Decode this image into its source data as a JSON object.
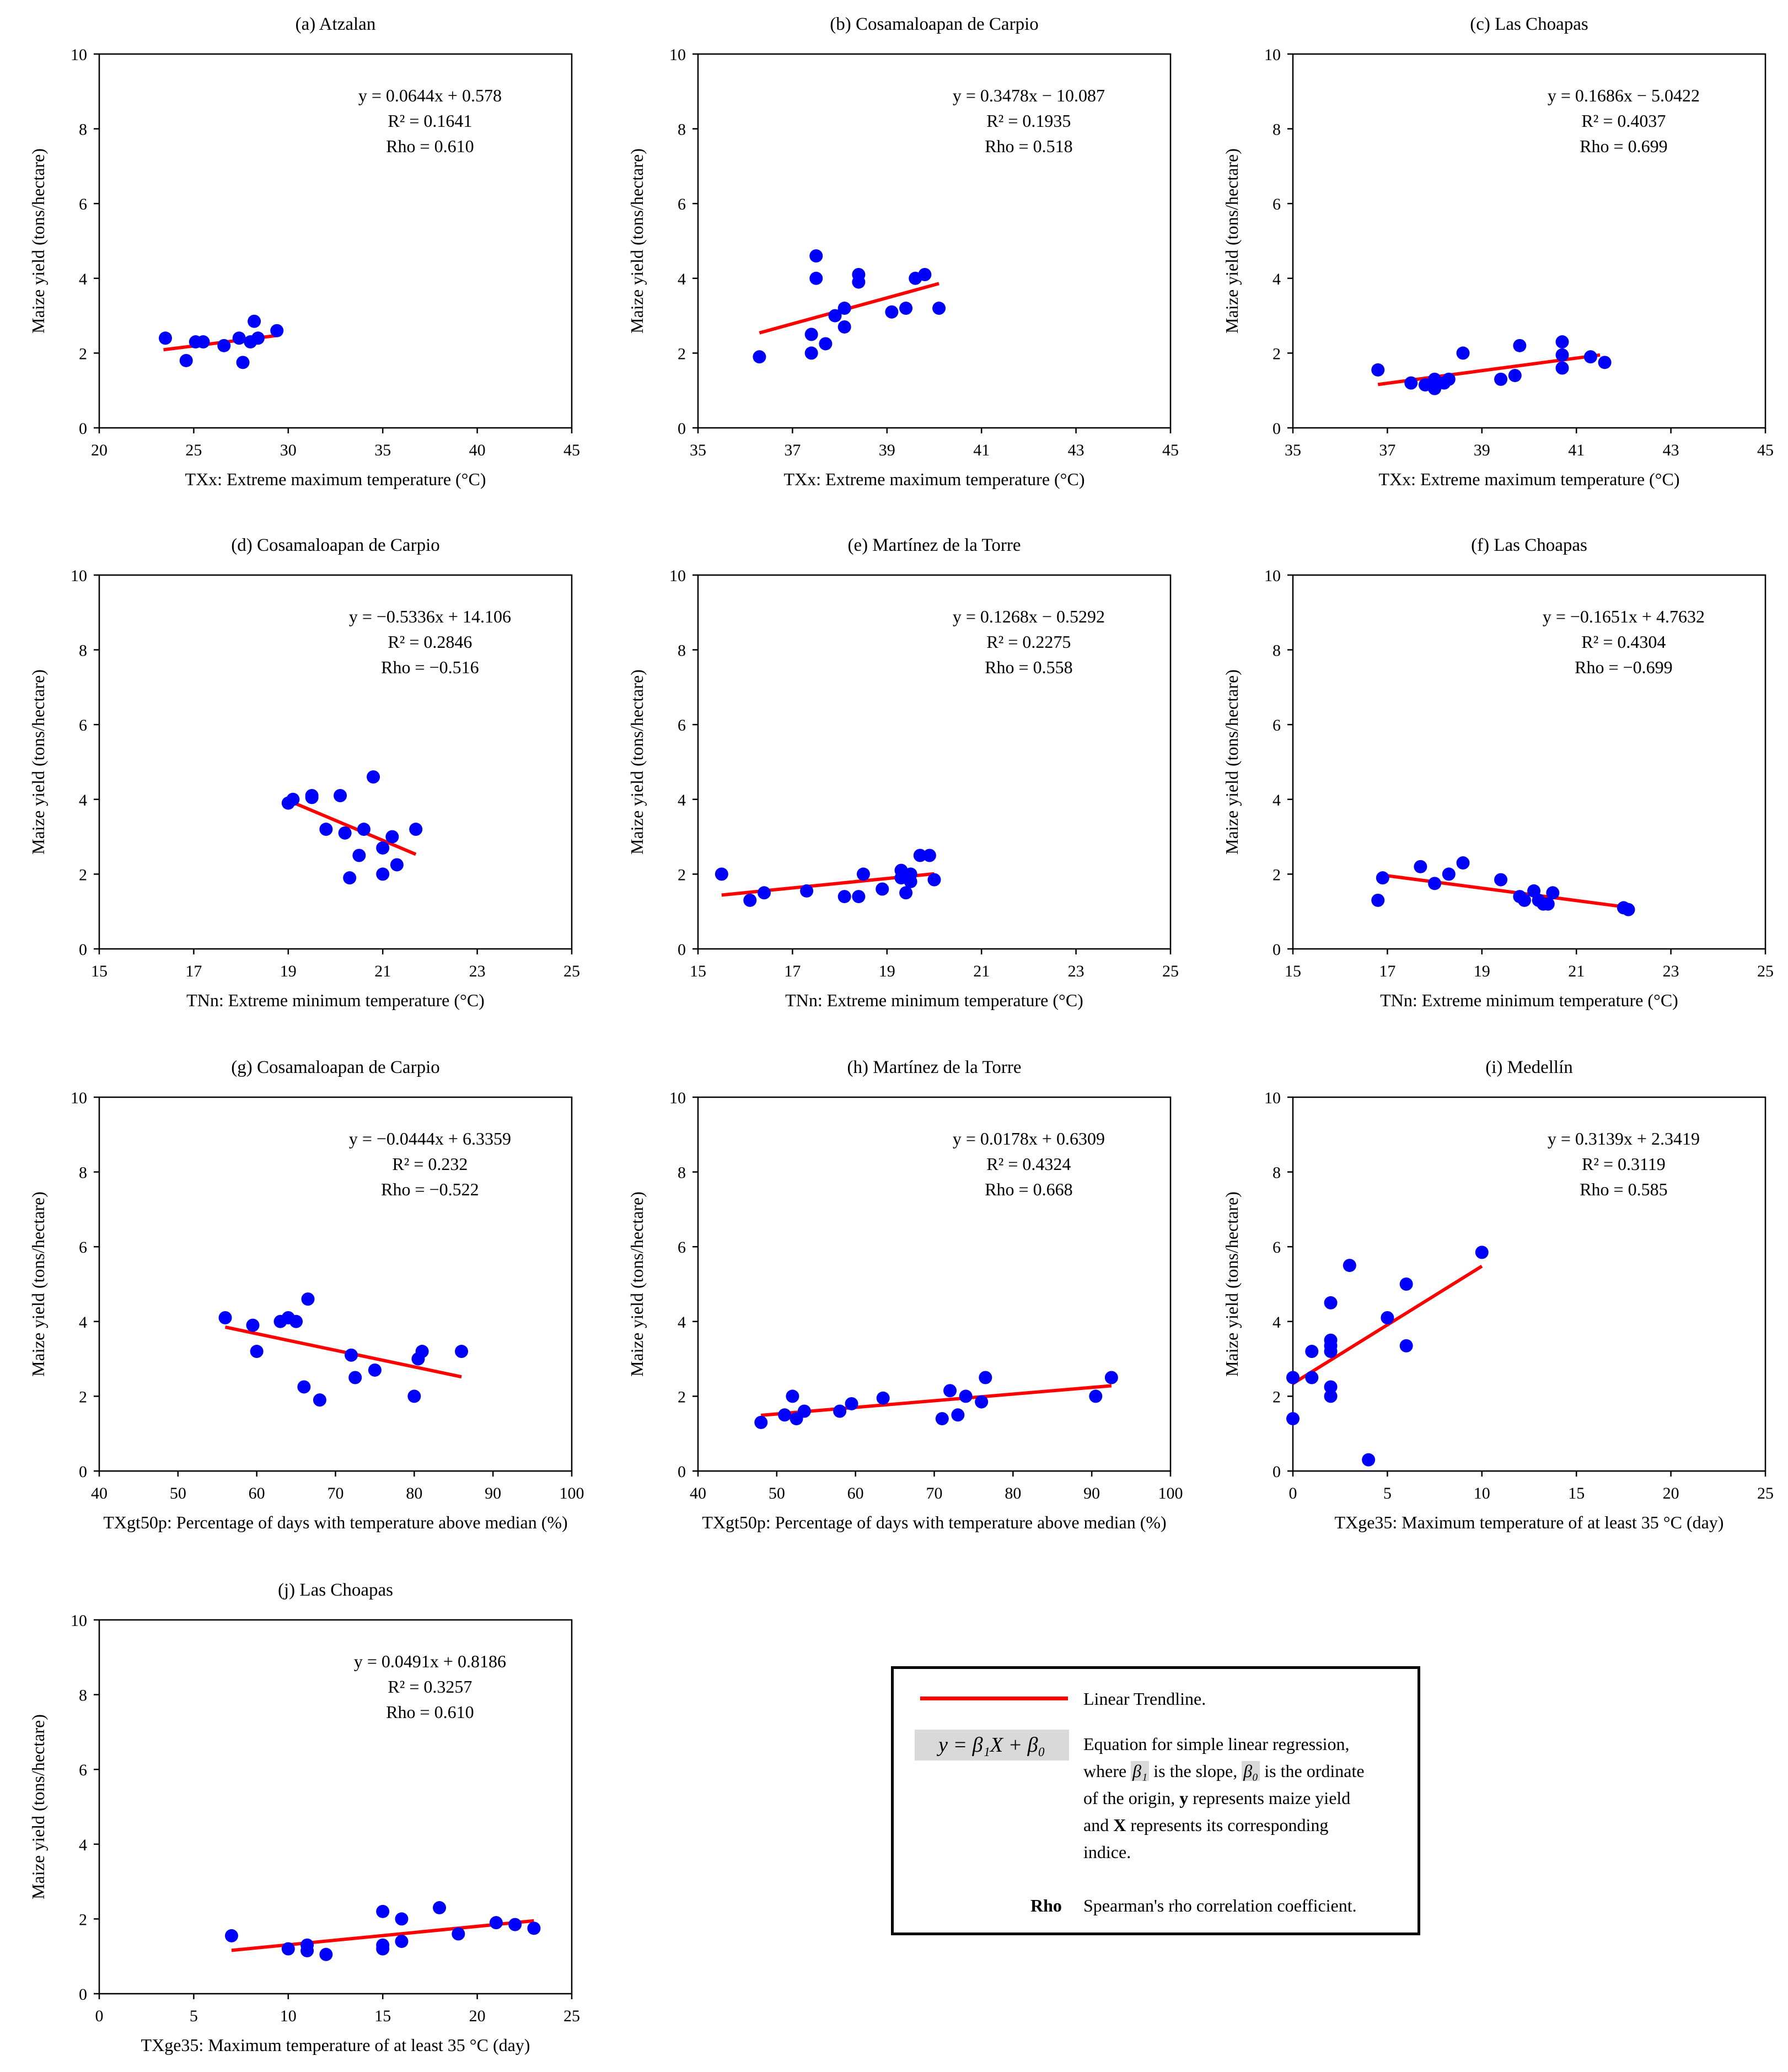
{
  "chart_data": [
    {
      "type": "scatter",
      "title": "(a) Atzalan",
      "xlabel": "TXx: Extreme maximum  temperature (°C)",
      "ylabel": "Maize yield  (tons/hectare)",
      "xlim": [
        20,
        45
      ],
      "ylim": [
        0,
        10
      ],
      "xticks": [
        "20",
        "25",
        "30",
        "35",
        "40",
        "45"
      ],
      "yticks": [
        "0",
        "2",
        "4",
        "6",
        "8",
        "10"
      ],
      "equation": "y = 0.0644x + 0.578",
      "r2": "R² = 0.1641",
      "rho": "Rho = 0.610",
      "trend": [
        [
          23.4,
          2.09
        ],
        [
          29.4,
          2.47
        ]
      ],
      "points": [
        [
          23.5,
          2.4
        ],
        [
          24.6,
          1.8
        ],
        [
          25.1,
          2.3
        ],
        [
          25.5,
          2.3
        ],
        [
          26.6,
          2.2
        ],
        [
          27.4,
          2.4
        ],
        [
          27.6,
          1.75
        ],
        [
          28.0,
          2.3
        ],
        [
          28.2,
          2.85
        ],
        [
          28.4,
          2.4
        ],
        [
          29.4,
          2.6
        ]
      ]
    },
    {
      "type": "scatter",
      "title": "(b) Cosamaloapan de Carpio",
      "xlabel": "TXx: Extreme maximum  temperature (°C)",
      "ylabel": "Maize yield  (tons/hectare)",
      "xlim": [
        35,
        45
      ],
      "ylim": [
        0,
        10
      ],
      "xticks": [
        "35",
        "37",
        "39",
        "41",
        "43",
        "45"
      ],
      "yticks": [
        "0",
        "2",
        "4",
        "6",
        "8",
        "10"
      ],
      "equation": "y = 0.3478x − 10.087",
      "r2": "R² = 0.1935",
      "rho": "Rho = 0.518",
      "trend": [
        [
          36.3,
          2.54
        ],
        [
          40.1,
          3.86
        ]
      ],
      "points": [
        [
          36.3,
          1.9
        ],
        [
          37.4,
          2.0
        ],
        [
          37.4,
          2.5
        ],
        [
          37.5,
          4.0
        ],
        [
          37.5,
          4.6
        ],
        [
          37.7,
          2.25
        ],
        [
          37.9,
          3.0
        ],
        [
          38.1,
          3.2
        ],
        [
          38.1,
          2.7
        ],
        [
          38.4,
          4.1
        ],
        [
          38.4,
          3.9
        ],
        [
          39.1,
          3.1
        ],
        [
          39.4,
          3.2
        ],
        [
          39.6,
          4.0
        ],
        [
          39.8,
          4.1
        ],
        [
          40.1,
          3.2
        ]
      ]
    },
    {
      "type": "scatter",
      "title": "(c) Las Choapas",
      "xlabel": "TXx: Extreme maximum  temperature (°C)",
      "ylabel": "Maize yield  (tons/hectare)",
      "xlim": [
        35,
        45
      ],
      "ylim": [
        0,
        10
      ],
      "xticks": [
        "35",
        "37",
        "39",
        "41",
        "43",
        "45"
      ],
      "yticks": [
        "0",
        "2",
        "4",
        "6",
        "8",
        "10"
      ],
      "equation": "y = 0.1686x − 5.0422",
      "r2": "R² = 0.4037",
      "rho": "Rho = 0.699",
      "trend": [
        [
          36.8,
          1.16
        ],
        [
          41.5,
          1.95
        ]
      ],
      "points": [
        [
          36.8,
          1.55
        ],
        [
          37.5,
          1.2
        ],
        [
          37.8,
          1.15
        ],
        [
          38.0,
          1.05
        ],
        [
          38.0,
          1.3
        ],
        [
          38.2,
          1.2
        ],
        [
          38.3,
          1.3
        ],
        [
          38.6,
          2.0
        ],
        [
          39.4,
          1.3
        ],
        [
          39.7,
          1.4
        ],
        [
          39.8,
          2.2
        ],
        [
          40.7,
          2.3
        ],
        [
          40.7,
          1.95
        ],
        [
          40.7,
          1.6
        ],
        [
          41.3,
          1.9
        ],
        [
          41.6,
          1.75
        ]
      ]
    },
    {
      "type": "scatter",
      "title": "(d) Cosamaloapan de Carpio",
      "xlabel": "TNn: Extreme minimum  temperature (°C)",
      "ylabel": "Maize yield  (tons/hectare)",
      "xlim": [
        15,
        25
      ],
      "ylim": [
        0,
        10
      ],
      "xticks": [
        "15",
        "17",
        "19",
        "21",
        "23",
        "25"
      ],
      "yticks": [
        "0",
        "2",
        "4",
        "6",
        "8",
        "10"
      ],
      "equation": "y = −0.5336x + 14.106",
      "r2": "R² = 0.2846",
      "rho": "Rho = −0.516",
      "trend": [
        [
          19.0,
          3.97
        ],
        [
          21.7,
          2.53
        ]
      ],
      "points": [
        [
          19.0,
          3.9
        ],
        [
          19.1,
          4.0
        ],
        [
          19.5,
          4.1
        ],
        [
          19.5,
          4.05
        ],
        [
          19.8,
          3.2
        ],
        [
          20.1,
          4.1
        ],
        [
          20.2,
          3.1
        ],
        [
          20.3,
          1.9
        ],
        [
          20.5,
          2.5
        ],
        [
          20.6,
          3.2
        ],
        [
          20.8,
          4.6
        ],
        [
          21.0,
          2.7
        ],
        [
          21.0,
          2.0
        ],
        [
          21.2,
          3.0
        ],
        [
          21.3,
          2.25
        ],
        [
          21.7,
          3.2
        ]
      ]
    },
    {
      "type": "scatter",
      "title": "(e) Martínez de la Torre",
      "xlabel": "TNn: Extreme minimum  temperature (°C)",
      "ylabel": "Maize yield  (tons/hectare)",
      "xlim": [
        15,
        25
      ],
      "ylim": [
        0,
        10
      ],
      "xticks": [
        "15",
        "17",
        "19",
        "21",
        "23",
        "25"
      ],
      "yticks": [
        "0",
        "2",
        "4",
        "6",
        "8",
        "10"
      ],
      "equation": "y = 0.1268x − 0.5292",
      "r2": "R² = 0.2275",
      "rho": "Rho = 0.558",
      "trend": [
        [
          15.5,
          1.44
        ],
        [
          20.0,
          2.01
        ]
      ],
      "points": [
        [
          15.5,
          2.0
        ],
        [
          16.1,
          1.3
        ],
        [
          16.4,
          1.5
        ],
        [
          17.3,
          1.55
        ],
        [
          18.1,
          1.4
        ],
        [
          18.4,
          1.4
        ],
        [
          18.5,
          2.0
        ],
        [
          18.9,
          1.6
        ],
        [
          19.3,
          1.9
        ],
        [
          19.3,
          2.1
        ],
        [
          19.4,
          1.5
        ],
        [
          19.5,
          1.8
        ],
        [
          19.5,
          2.0
        ],
        [
          19.7,
          2.5
        ],
        [
          19.9,
          2.5
        ],
        [
          20.0,
          1.85
        ]
      ]
    },
    {
      "type": "scatter",
      "title": "(f) Las Choapas",
      "xlabel": "TNn: Extreme minimum  temperature (°C)",
      "ylabel": "Maize yield  (tons/hectare)",
      "xlim": [
        15,
        25
      ],
      "ylim": [
        0,
        10
      ],
      "xticks": [
        "15",
        "17",
        "19",
        "21",
        "23",
        "25"
      ],
      "yticks": [
        "0",
        "2",
        "4",
        "6",
        "8",
        "10"
      ],
      "equation": "y = −0.1651x + 4.7632",
      "r2": "R² = 0.4304",
      "rho": "Rho = −0.699",
      "trend": [
        [
          16.8,
          1.99
        ],
        [
          22.1,
          1.11
        ]
      ],
      "points": [
        [
          16.8,
          1.3
        ],
        [
          16.9,
          1.9
        ],
        [
          17.7,
          2.2
        ],
        [
          18.0,
          1.75
        ],
        [
          18.3,
          2.0
        ],
        [
          18.6,
          2.3
        ],
        [
          19.4,
          1.85
        ],
        [
          19.8,
          1.4
        ],
        [
          19.9,
          1.3
        ],
        [
          20.1,
          1.55
        ],
        [
          20.2,
          1.3
        ],
        [
          20.3,
          1.2
        ],
        [
          20.4,
          1.2
        ],
        [
          20.5,
          1.5
        ],
        [
          22.0,
          1.1
        ],
        [
          22.1,
          1.05
        ]
      ]
    },
    {
      "type": "scatter",
      "title": "(g) Cosamaloapan de Carpio",
      "xlabel": "TXgt50p: Percentage of days with temperature above median (%)",
      "ylabel": "Maize yield  (tons/hectare)",
      "xlim": [
        40,
        100
      ],
      "ylim": [
        0,
        10
      ],
      "xticks": [
        "40",
        "50",
        "60",
        "70",
        "80",
        "90",
        "100"
      ],
      "yticks": [
        "0",
        "2",
        "4",
        "6",
        "8",
        "10"
      ],
      "equation": "y = −0.0444x + 6.3359",
      "r2": "R² = 0.232",
      "rho": "Rho = −0.522",
      "trend": [
        [
          56,
          3.85
        ],
        [
          86,
          2.52
        ]
      ],
      "points": [
        [
          56,
          4.1
        ],
        [
          59.5,
          3.9
        ],
        [
          60,
          3.2
        ],
        [
          63,
          4.0
        ],
        [
          64,
          4.1
        ],
        [
          65,
          4.0
        ],
        [
          66,
          2.25
        ],
        [
          66.5,
          4.6
        ],
        [
          68,
          1.9
        ],
        [
          72,
          3.1
        ],
        [
          72.5,
          2.5
        ],
        [
          75,
          2.7
        ],
        [
          80,
          2.0
        ],
        [
          80.5,
          3.0
        ],
        [
          81,
          3.2
        ],
        [
          86,
          3.2
        ]
      ]
    },
    {
      "type": "scatter",
      "title": "(h) Martínez de la Torre",
      "xlabel": "TXgt50p: Percentage of days with temperature above median (%)",
      "ylabel": "Maize yield  (tons/hectare)",
      "xlim": [
        40,
        100
      ],
      "ylim": [
        0,
        10
      ],
      "xticks": [
        "40",
        "50",
        "60",
        "70",
        "80",
        "90",
        "100"
      ],
      "yticks": [
        "0",
        "2",
        "4",
        "6",
        "8",
        "10"
      ],
      "equation": "y = 0.0178x + 0.6309",
      "r2": "R² = 0.4324",
      "rho": "Rho = 0.668",
      "trend": [
        [
          48,
          1.49
        ],
        [
          92.5,
          2.28
        ]
      ],
      "points": [
        [
          48,
          1.3
        ],
        [
          51,
          1.5
        ],
        [
          52,
          2.0
        ],
        [
          52.5,
          1.4
        ],
        [
          53.5,
          1.6
        ],
        [
          58,
          1.6
        ],
        [
          59.5,
          1.8
        ],
        [
          63.5,
          1.95
        ],
        [
          71,
          1.4
        ],
        [
          72,
          2.15
        ],
        [
          73,
          1.5
        ],
        [
          74,
          2.0
        ],
        [
          76,
          1.85
        ],
        [
          76.5,
          2.5
        ],
        [
          90.5,
          2.0
        ],
        [
          92.5,
          2.5
        ]
      ]
    },
    {
      "type": "scatter",
      "title": "(i) Medellín",
      "xlabel": "TXge35: Maximum  temperature of at least 35 °C (day)",
      "ylabel": "Maize yield  (tons/hectare)",
      "xlim": [
        0,
        25
      ],
      "ylim": [
        0,
        10
      ],
      "xticks": [
        "0",
        "5",
        "10",
        "15",
        "20",
        "25"
      ],
      "yticks": [
        "0",
        "2",
        "4",
        "6",
        "8",
        "10"
      ],
      "equation": "y = 0.3139x + 2.3419",
      "r2": "R² = 0.3119",
      "rho": "Rho = 0.585",
      "trend": [
        [
          0,
          2.34
        ],
        [
          10,
          5.48
        ]
      ],
      "points": [
        [
          0,
          1.4
        ],
        [
          0,
          2.5
        ],
        [
          1,
          2.5
        ],
        [
          1,
          3.2
        ],
        [
          2,
          2.0
        ],
        [
          2,
          2.25
        ],
        [
          2,
          3.2
        ],
        [
          2,
          3.35
        ],
        [
          2,
          3.5
        ],
        [
          2,
          4.5
        ],
        [
          3,
          5.5
        ],
        [
          4,
          0.3
        ],
        [
          5,
          4.1
        ],
        [
          6,
          3.35
        ],
        [
          6,
          5.0
        ],
        [
          10,
          5.85
        ]
      ]
    },
    {
      "type": "scatter",
      "title": "(j) Las Choapas",
      "xlabel": "TXge35: Maximum  temperature of at least 35 °C (day)",
      "ylabel": "Maize yield  (tons/hectare)",
      "xlim": [
        0,
        25
      ],
      "ylim": [
        0,
        10
      ],
      "xticks": [
        "0",
        "5",
        "10",
        "15",
        "20",
        "25"
      ],
      "yticks": [
        "0",
        "2",
        "4",
        "6",
        "8",
        "10"
      ],
      "equation": "y = 0.0491x + 0.8186",
      "r2": "R² = 0.3257",
      "rho": "Rho = 0.610",
      "trend": [
        [
          7,
          1.16
        ],
        [
          23,
          1.95
        ]
      ],
      "points": [
        [
          7,
          1.55
        ],
        [
          10,
          1.2
        ],
        [
          11,
          1.15
        ],
        [
          11,
          1.3
        ],
        [
          12,
          1.05
        ],
        [
          15,
          1.2
        ],
        [
          15,
          1.3
        ],
        [
          15,
          2.2
        ],
        [
          16,
          1.4
        ],
        [
          16,
          2.0
        ],
        [
          18,
          2.3
        ],
        [
          19,
          1.6
        ],
        [
          21,
          1.9
        ],
        [
          22,
          1.85
        ],
        [
          23,
          1.75
        ]
      ]
    }
  ],
  "legend": {
    "trend_label": "Linear Trendline.",
    "equation": "y = β₁X + β₀",
    "eq_line1": "Equation for simple linear regression,",
    "eq_where": "where ",
    "beta1": "β₁",
    "eq_slope": " is the slope, ",
    "beta0": "β₀",
    "eq_ordinate": " is the ordinate",
    "eq_line3": "of the origin, ",
    "y_bold": "y",
    "eq_line3b": " represents maize yield",
    "eq_line4a": "and ",
    "x_bold": "X",
    "eq_line4b": " represents its corresponding",
    "eq_line5": "indice.",
    "rho_key": "Rho",
    "rho_desc": "Spearman's rho correlation coefficient."
  },
  "colors": {
    "points": "#0000ff",
    "trend": "#ff0000",
    "axis": "#000000",
    "frame": "#000000"
  }
}
